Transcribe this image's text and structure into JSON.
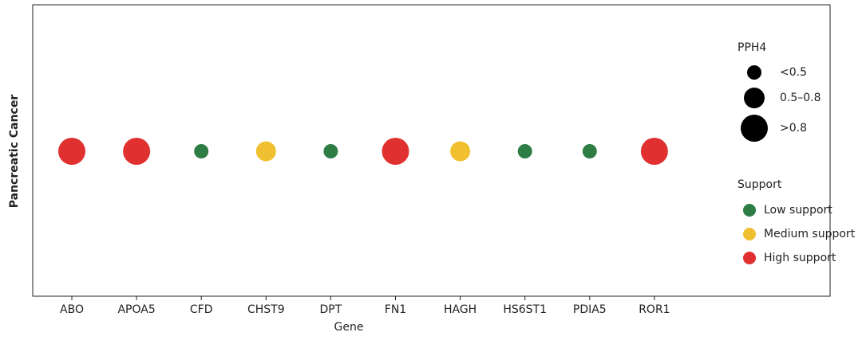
{
  "chart_data": {
    "type": "dot",
    "xlabel": "Gene",
    "ylabel": "Pancreatic Cancer",
    "categories": [
      "ABO",
      "APOA5",
      "CFD",
      "CHST9",
      "DPT",
      "FN1",
      "HAGH",
      "HS6ST1",
      "PDIA5",
      "ROR1"
    ],
    "pph4": [
      ">0.8",
      ">0.8",
      "<0.5",
      "0.5–0.8",
      "<0.5",
      ">0.8",
      "0.5–0.8",
      "<0.5",
      "<0.5",
      ">0.8"
    ],
    "support": [
      "High support",
      "High support",
      "Low support",
      "Medium support",
      "Low support",
      "High support",
      "Medium support",
      "Low support",
      "Low support",
      "High support"
    ],
    "size_legend": {
      "title": "PPH4",
      "levels": [
        "<0.5",
        "0.5–0.8",
        ">0.8"
      ]
    },
    "color_legend": {
      "title": "Support",
      "levels": [
        "Low support",
        "Medium support",
        "High support"
      ],
      "colors": [
        "#2e7d45",
        "#f0c030",
        "#e03030"
      ]
    }
  }
}
